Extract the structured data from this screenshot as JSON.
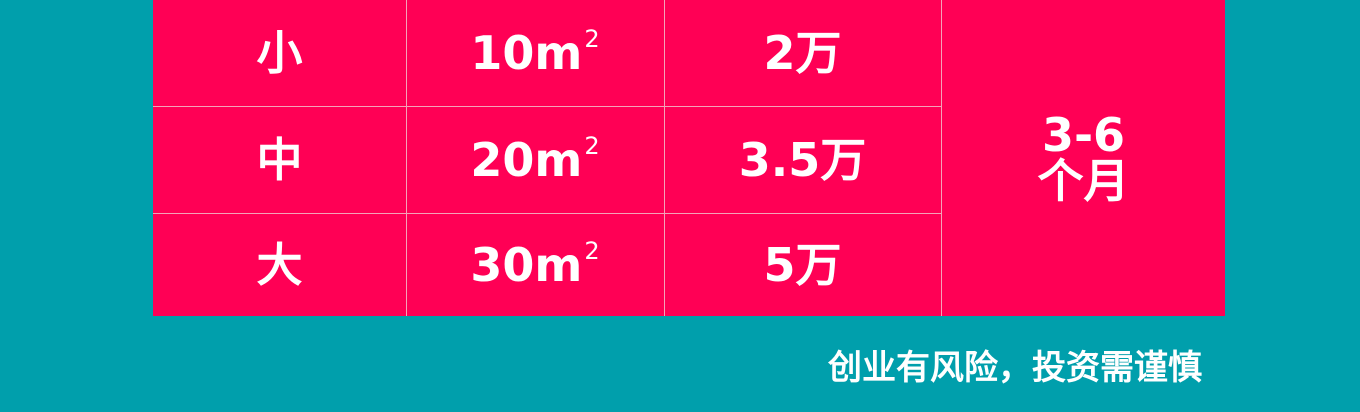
{
  "table": {
    "rows": [
      {
        "size": "小",
        "area": "10m",
        "area_sup": "2",
        "cost": "2万"
      },
      {
        "size": "中",
        "area": "20m",
        "area_sup": "2",
        "cost": "3.5万"
      },
      {
        "size": "大",
        "area": "30m",
        "area_sup": "2",
        "cost": "5万"
      }
    ],
    "duration_line1": "3-6",
    "duration_line2": "个月"
  },
  "footer": {
    "warning": "创业有风险，投资需谨慎"
  },
  "colors": {
    "background": "#009fac",
    "table_fill": "#ff0055",
    "text": "#ffffff"
  }
}
